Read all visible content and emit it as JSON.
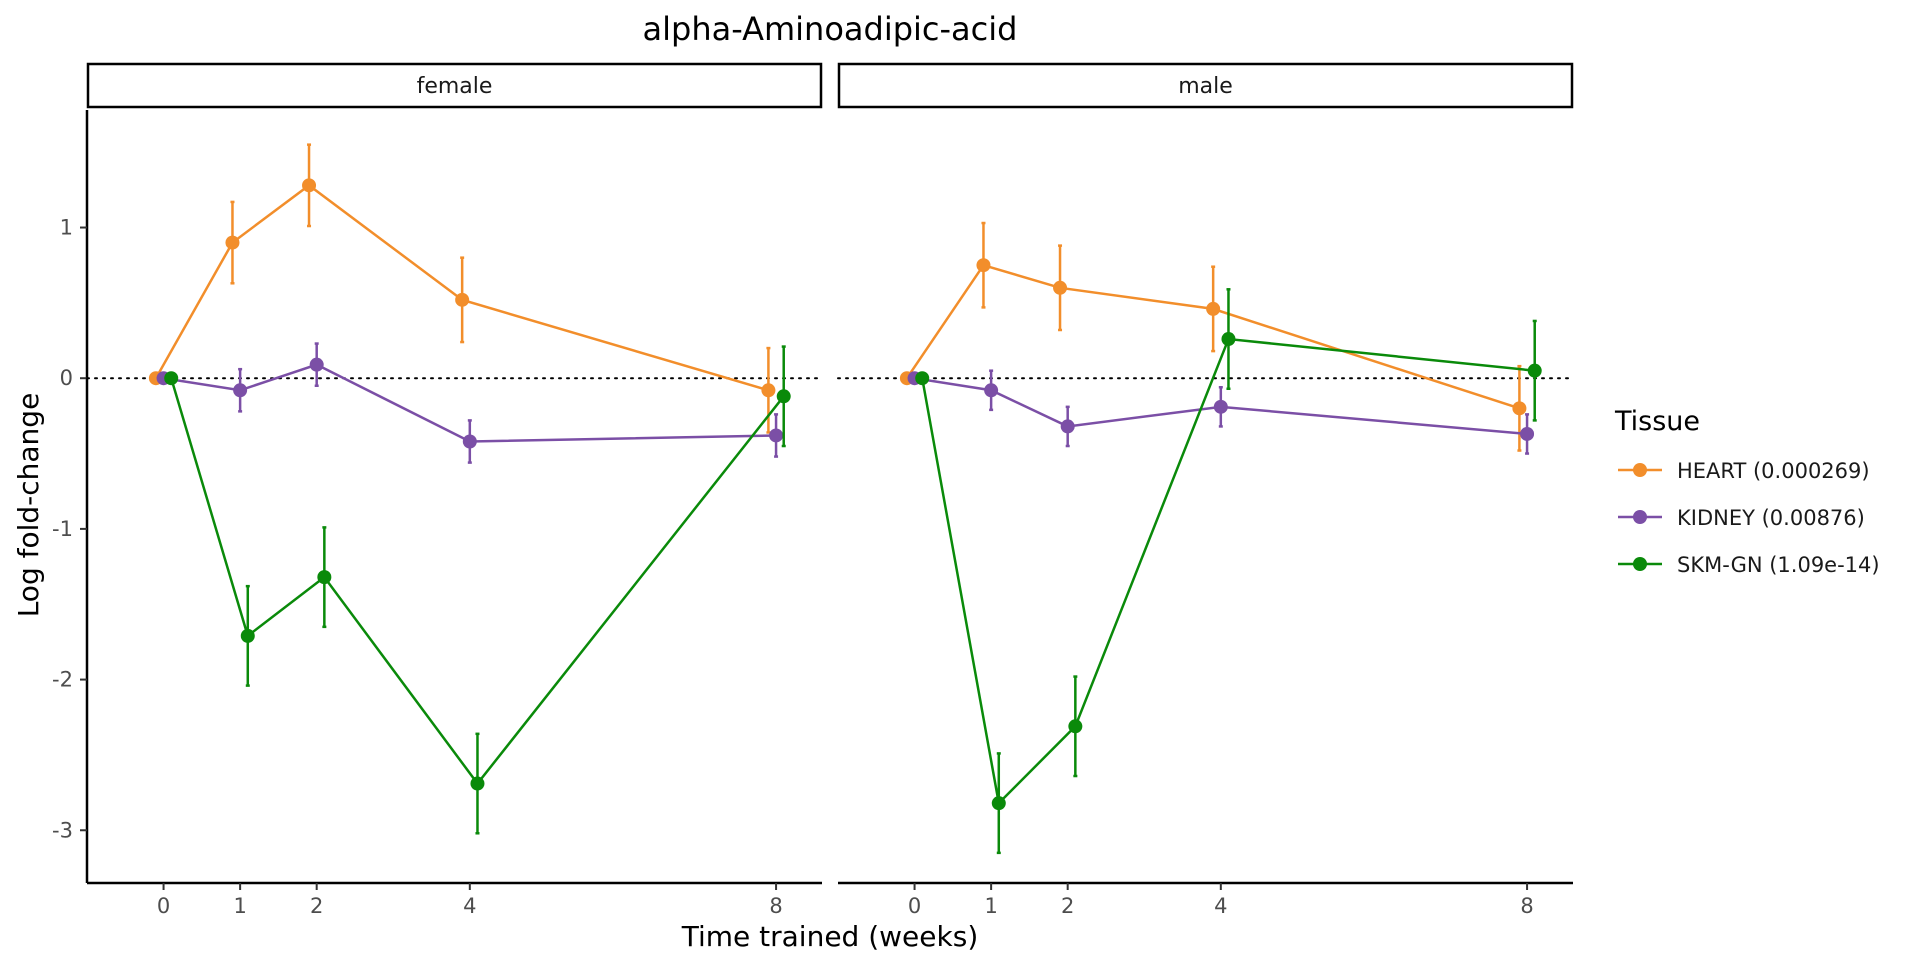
{
  "chart_data": {
    "type": "line",
    "title": "alpha-Aminoadipic-acid",
    "xlabel": "Time trained (weeks)",
    "ylabel": "Log fold-change",
    "x_ticks": [
      0,
      1,
      2,
      4,
      8
    ],
    "y_ticks": [
      1,
      0,
      -1,
      -2,
      -3
    ],
    "ylim": [
      -3.35,
      1.78
    ],
    "reference_line": 0,
    "legend": {
      "title": "Tissue",
      "placement": "right"
    },
    "panels": [
      {
        "label": "female",
        "series": [
          {
            "name": "HEART (0.000269)",
            "color": "#F28E2B",
            "x": [
              0,
              1,
              2,
              4,
              8
            ],
            "y": [
              0.0,
              0.9,
              1.28,
              0.52,
              -0.08
            ],
            "err": [
              0.0,
              0.27,
              0.27,
              0.28,
              0.28
            ]
          },
          {
            "name": "KIDNEY (0.00876)",
            "color": "#7B4FA6",
            "x": [
              0,
              1,
              2,
              4,
              8
            ],
            "y": [
              0.0,
              -0.08,
              0.09,
              -0.42,
              -0.38
            ],
            "err": [
              0.0,
              0.14,
              0.14,
              0.14,
              0.14
            ]
          },
          {
            "name": "SKM-GN (1.09e-14)",
            "color": "#0A8A0A",
            "x": [
              0,
              1,
              2,
              4,
              8
            ],
            "y": [
              0.0,
              -1.71,
              -1.32,
              -2.69,
              -0.12
            ],
            "err": [
              0.0,
              0.33,
              0.33,
              0.33,
              0.33
            ]
          }
        ]
      },
      {
        "label": "male",
        "series": [
          {
            "name": "HEART (0.000269)",
            "color": "#F28E2B",
            "x": [
              0,
              1,
              2,
              4,
              8
            ],
            "y": [
              0.0,
              0.75,
              0.6,
              0.46,
              -0.2
            ],
            "err": [
              0.0,
              0.28,
              0.28,
              0.28,
              0.28
            ]
          },
          {
            "name": "KIDNEY (0.00876)",
            "color": "#7B4FA6",
            "x": [
              0,
              1,
              2,
              4,
              8
            ],
            "y": [
              0.0,
              -0.08,
              -0.32,
              -0.19,
              -0.37
            ],
            "err": [
              0.0,
              0.13,
              0.13,
              0.13,
              0.13
            ]
          },
          {
            "name": "SKM-GN (1.09e-14)",
            "color": "#0A8A0A",
            "x": [
              0,
              1,
              2,
              4,
              8
            ],
            "y": [
              0.0,
              -2.82,
              -2.31,
              0.26,
              0.05
            ],
            "err": [
              0.0,
              0.33,
              0.33,
              0.33,
              0.33
            ]
          }
        ]
      }
    ]
  }
}
